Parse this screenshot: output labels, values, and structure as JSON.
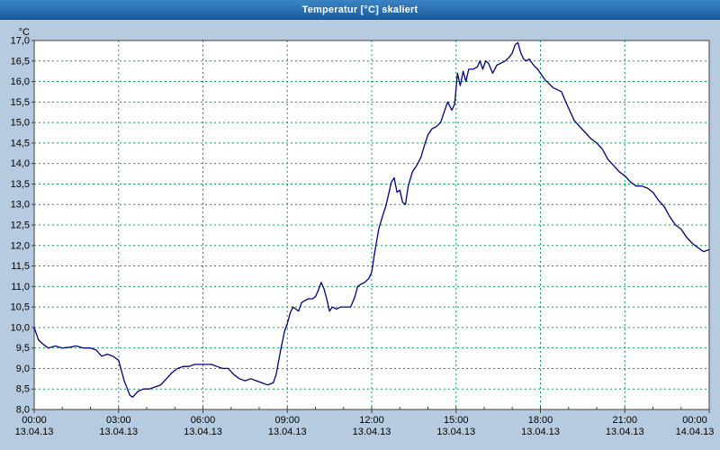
{
  "window": {
    "title": "Temperatur [°C] skaliert"
  },
  "chart_data": {
    "type": "line",
    "title": "Temperatur [°C] skaliert",
    "y_unit_label": "°C",
    "ylim": [
      8.0,
      17.0
    ],
    "y_tick_step": 0.5,
    "y_tick_labels": [
      "8,0",
      "8,5",
      "9,0",
      "9,5",
      "10,0",
      "10,5",
      "11,0",
      "11,5",
      "12,0",
      "12,5",
      "13,0",
      "13,5",
      "14,0",
      "14,5",
      "15,0",
      "15,5",
      "16,0",
      "16,5",
      "17,0"
    ],
    "xlim_hours": [
      0,
      24
    ],
    "x_tick_step_hours": 3,
    "x_minor_tick_hours": 1,
    "x_ticks": [
      {
        "time": "00:00",
        "date": "13.04.13"
      },
      {
        "time": "03:00",
        "date": "13.04.13"
      },
      {
        "time": "06:00",
        "date": "13.04.13"
      },
      {
        "time": "09:00",
        "date": "13.04.13"
      },
      {
        "time": "12:00",
        "date": "13.04.13"
      },
      {
        "time": "15:00",
        "date": "13.04.13"
      },
      {
        "time": "18:00",
        "date": "13.04.13"
      },
      {
        "time": "21:00",
        "date": "13.04.13"
      },
      {
        "time": "00:00",
        "date": "14.04.13"
      }
    ],
    "grid": true,
    "legend": "none",
    "colors": {
      "line": "#000080",
      "grid": "#00a050",
      "plot_background": "#ffffff",
      "outer_background": "#b7cbe0",
      "axis": "#404040",
      "label_text": "#000000"
    },
    "series": [
      {
        "name": "Temperatur",
        "points": [
          [
            0.0,
            10.0
          ],
          [
            0.15,
            9.7
          ],
          [
            0.3,
            9.6
          ],
          [
            0.5,
            9.5
          ],
          [
            0.75,
            9.55
          ],
          [
            1.0,
            9.5
          ],
          [
            1.25,
            9.52
          ],
          [
            1.5,
            9.55
          ],
          [
            1.75,
            9.5
          ],
          [
            2.0,
            9.5
          ],
          [
            2.2,
            9.45
          ],
          [
            2.4,
            9.3
          ],
          [
            2.6,
            9.35
          ],
          [
            2.8,
            9.3
          ],
          [
            3.0,
            9.2
          ],
          [
            3.2,
            8.7
          ],
          [
            3.4,
            8.35
          ],
          [
            3.5,
            8.3
          ],
          [
            3.7,
            8.45
          ],
          [
            3.9,
            8.5
          ],
          [
            4.1,
            8.5
          ],
          [
            4.3,
            8.55
          ],
          [
            4.5,
            8.6
          ],
          [
            4.7,
            8.75
          ],
          [
            4.9,
            8.9
          ],
          [
            5.1,
            9.0
          ],
          [
            5.3,
            9.05
          ],
          [
            5.5,
            9.05
          ],
          [
            5.7,
            9.1
          ],
          [
            5.9,
            9.1
          ],
          [
            6.1,
            9.1
          ],
          [
            6.3,
            9.1
          ],
          [
            6.5,
            9.05
          ],
          [
            6.7,
            9.0
          ],
          [
            6.9,
            9.0
          ],
          [
            7.1,
            8.85
          ],
          [
            7.3,
            8.75
          ],
          [
            7.5,
            8.7
          ],
          [
            7.7,
            8.75
          ],
          [
            7.9,
            8.7
          ],
          [
            8.1,
            8.65
          ],
          [
            8.3,
            8.6
          ],
          [
            8.5,
            8.65
          ],
          [
            8.6,
            8.85
          ],
          [
            8.75,
            9.4
          ],
          [
            8.9,
            9.9
          ],
          [
            9.0,
            10.1
          ],
          [
            9.1,
            10.35
          ],
          [
            9.2,
            10.5
          ],
          [
            9.3,
            10.45
          ],
          [
            9.4,
            10.4
          ],
          [
            9.5,
            10.6
          ],
          [
            9.6,
            10.65
          ],
          [
            9.75,
            10.7
          ],
          [
            9.9,
            10.7
          ],
          [
            10.0,
            10.75
          ],
          [
            10.1,
            10.9
          ],
          [
            10.2,
            11.1
          ],
          [
            10.3,
            10.95
          ],
          [
            10.4,
            10.7
          ],
          [
            10.5,
            10.4
          ],
          [
            10.6,
            10.5
          ],
          [
            10.75,
            10.45
          ],
          [
            10.9,
            10.5
          ],
          [
            11.1,
            10.5
          ],
          [
            11.25,
            10.5
          ],
          [
            11.4,
            10.75
          ],
          [
            11.5,
            11.0
          ],
          [
            11.6,
            11.05
          ],
          [
            11.75,
            11.1
          ],
          [
            11.9,
            11.2
          ],
          [
            12.0,
            11.35
          ],
          [
            12.1,
            11.8
          ],
          [
            12.25,
            12.4
          ],
          [
            12.4,
            12.75
          ],
          [
            12.5,
            12.95
          ],
          [
            12.6,
            13.25
          ],
          [
            12.7,
            13.55
          ],
          [
            12.8,
            13.65
          ],
          [
            12.9,
            13.3
          ],
          [
            13.0,
            13.35
          ],
          [
            13.1,
            13.05
          ],
          [
            13.2,
            13.0
          ],
          [
            13.3,
            13.45
          ],
          [
            13.45,
            13.8
          ],
          [
            13.6,
            13.95
          ],
          [
            13.75,
            14.15
          ],
          [
            13.9,
            14.5
          ],
          [
            14.0,
            14.7
          ],
          [
            14.15,
            14.85
          ],
          [
            14.3,
            14.9
          ],
          [
            14.45,
            15.0
          ],
          [
            14.6,
            15.3
          ],
          [
            14.7,
            15.5
          ],
          [
            14.85,
            15.3
          ],
          [
            14.95,
            15.45
          ],
          [
            15.05,
            16.2
          ],
          [
            15.15,
            15.9
          ],
          [
            15.25,
            16.25
          ],
          [
            15.35,
            16.0
          ],
          [
            15.45,
            16.3
          ],
          [
            15.6,
            16.3
          ],
          [
            15.75,
            16.35
          ],
          [
            15.85,
            16.5
          ],
          [
            15.95,
            16.3
          ],
          [
            16.05,
            16.5
          ],
          [
            16.15,
            16.45
          ],
          [
            16.3,
            16.2
          ],
          [
            16.45,
            16.4
          ],
          [
            16.6,
            16.45
          ],
          [
            16.75,
            16.5
          ],
          [
            16.9,
            16.6
          ],
          [
            17.0,
            16.7
          ],
          [
            17.1,
            16.9
          ],
          [
            17.2,
            16.95
          ],
          [
            17.3,
            16.7
          ],
          [
            17.4,
            16.55
          ],
          [
            17.5,
            16.5
          ],
          [
            17.6,
            16.55
          ],
          [
            17.75,
            16.4
          ],
          [
            17.9,
            16.3
          ],
          [
            18.0,
            16.2
          ],
          [
            18.15,
            16.05
          ],
          [
            18.3,
            15.95
          ],
          [
            18.45,
            15.85
          ],
          [
            18.6,
            15.8
          ],
          [
            18.75,
            15.75
          ],
          [
            18.9,
            15.5
          ],
          [
            19.0,
            15.35
          ],
          [
            19.2,
            15.05
          ],
          [
            19.4,
            14.9
          ],
          [
            19.6,
            14.75
          ],
          [
            19.8,
            14.6
          ],
          [
            20.0,
            14.5
          ],
          [
            20.2,
            14.35
          ],
          [
            20.4,
            14.1
          ],
          [
            20.6,
            13.95
          ],
          [
            20.8,
            13.8
          ],
          [
            21.0,
            13.7
          ],
          [
            21.2,
            13.55
          ],
          [
            21.4,
            13.45
          ],
          [
            21.6,
            13.45
          ],
          [
            21.8,
            13.4
          ],
          [
            22.0,
            13.3
          ],
          [
            22.2,
            13.1
          ],
          [
            22.4,
            12.95
          ],
          [
            22.6,
            12.7
          ],
          [
            22.8,
            12.5
          ],
          [
            23.0,
            12.4
          ],
          [
            23.2,
            12.2
          ],
          [
            23.4,
            12.05
          ],
          [
            23.6,
            11.95
          ],
          [
            23.8,
            11.85
          ],
          [
            24.0,
            11.9
          ]
        ]
      }
    ]
  }
}
